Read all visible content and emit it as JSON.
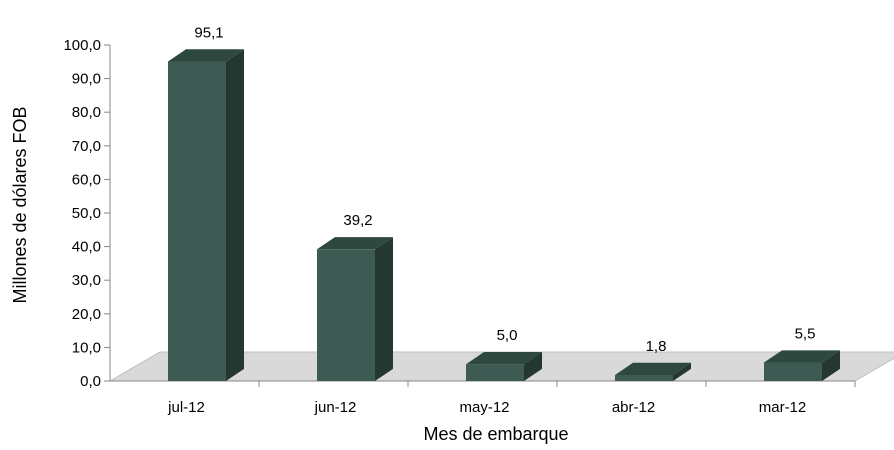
{
  "chart_data": {
    "type": "bar",
    "title": "",
    "xlabel": "Mes de embarque",
    "ylabel": "Millones de dólares FOB",
    "categories": [
      "jul-12",
      "jun-12",
      "may-12",
      "abr-12",
      "mar-12"
    ],
    "values": [
      95.1,
      39.2,
      5.0,
      1.8,
      5.5
    ],
    "data_labels": [
      "95,1",
      "39,2",
      "5,0",
      "1,8",
      "5,5"
    ],
    "ylim": [
      0,
      100
    ],
    "yticks": [
      "0,0",
      "10,0",
      "20,0",
      "30,0",
      "40,0",
      "50,0",
      "60,0",
      "70,0",
      "80,0",
      "90,0",
      "100,0"
    ],
    "grid": false,
    "legend": "none",
    "style": "3d-column",
    "colors": {
      "bar_front": "#3d5b52",
      "bar_side": "#243830",
      "bar_top": "#2e4840",
      "floor": "#d9d9d9",
      "axis": "#888888"
    }
  }
}
